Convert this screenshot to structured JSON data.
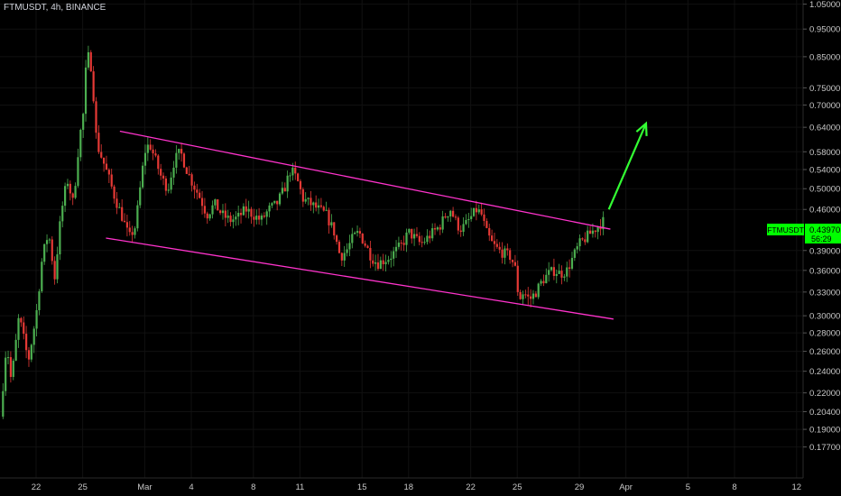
{
  "header": {
    "title": "FTMUSDT, 4h, BINANCE"
  },
  "price_tag": {
    "symbol": "FTMUSDT",
    "price": "0.43970",
    "countdown": "56:29",
    "color": "#00ff00"
  },
  "colors": {
    "background": "#000000",
    "up": "#4caf50",
    "down": "#e53935",
    "channel": "#ff33cc",
    "arrow": "#33ff33"
  },
  "chart_data": {
    "type": "candlestick",
    "scale": "log",
    "ylim": [
      0.165,
      1.06
    ],
    "y_ticks": [
      {
        "v": 1.05,
        "label": "1.05000"
      },
      {
        "v": 0.95,
        "label": "0.95000"
      },
      {
        "v": 0.85,
        "label": "0.85000"
      },
      {
        "v": 0.75,
        "label": "0.75000"
      },
      {
        "v": 0.7,
        "label": "0.70000"
      },
      {
        "v": 0.64,
        "label": "0.64000"
      },
      {
        "v": 0.58,
        "label": "0.58000"
      },
      {
        "v": 0.54,
        "label": "0.54000"
      },
      {
        "v": 0.5,
        "label": "0.50000"
      },
      {
        "v": 0.46,
        "label": "0.46000"
      },
      {
        "v": 0.39,
        "label": "0.39000"
      },
      {
        "v": 0.36,
        "label": "0.36000"
      },
      {
        "v": 0.33,
        "label": "0.33000"
      },
      {
        "v": 0.3,
        "label": "0.30000"
      },
      {
        "v": 0.28,
        "label": "0.28000"
      },
      {
        "v": 0.26,
        "label": "0.26000"
      },
      {
        "v": 0.24,
        "label": "0.24000"
      },
      {
        "v": 0.22,
        "label": "0.22000"
      },
      {
        "v": 0.204,
        "label": "0.20400"
      },
      {
        "v": 0.19,
        "label": "0.19000"
      },
      {
        "v": 0.177,
        "label": "0.17700"
      }
    ],
    "x_ticks": [
      {
        "t": 0,
        "label": "22"
      },
      {
        "t": 3,
        "label": "25"
      },
      {
        "t": 7,
        "label": "Mar"
      },
      {
        "t": 10,
        "label": "4"
      },
      {
        "t": 14,
        "label": "8"
      },
      {
        "t": 17,
        "label": "11"
      },
      {
        "t": 21,
        "label": "15"
      },
      {
        "t": 24,
        "label": "18"
      },
      {
        "t": 28,
        "label": "22"
      },
      {
        "t": 31,
        "label": "25"
      },
      {
        "t": 35,
        "label": "29"
      },
      {
        "t": 38,
        "label": "Apr"
      },
      {
        "t": 42,
        "label": "5"
      },
      {
        "t": 45,
        "label": "8"
      },
      {
        "t": 49,
        "label": "12"
      }
    ],
    "path_points": [
      [
        -2.3,
        0.2
      ],
      [
        -1.9,
        0.27
      ],
      [
        -1.6,
        0.23
      ],
      [
        -1.1,
        0.3
      ],
      [
        -0.5,
        0.25
      ],
      [
        0.0,
        0.3
      ],
      [
        0.4,
        0.38
      ],
      [
        0.8,
        0.42
      ],
      [
        1.2,
        0.35
      ],
      [
        1.6,
        0.45
      ],
      [
        2.0,
        0.52
      ],
      [
        2.4,
        0.47
      ],
      [
        2.8,
        0.62
      ],
      [
        3.0,
        0.65
      ],
      [
        3.2,
        0.8
      ],
      [
        3.4,
        0.86
      ],
      [
        3.6,
        0.8
      ],
      [
        3.9,
        0.6
      ],
      [
        4.3,
        0.56
      ],
      [
        4.7,
        0.52
      ],
      [
        5.1,
        0.48
      ],
      [
        5.5,
        0.45
      ],
      [
        6.0,
        0.41
      ],
      [
        6.4,
        0.43
      ],
      [
        6.7,
        0.5
      ],
      [
        7.0,
        0.58
      ],
      [
        7.3,
        0.6
      ],
      [
        7.7,
        0.56
      ],
      [
        8.1,
        0.52
      ],
      [
        8.5,
        0.5
      ],
      [
        8.9,
        0.56
      ],
      [
        9.3,
        0.58
      ],
      [
        9.7,
        0.54
      ],
      [
        10.1,
        0.51
      ],
      [
        10.6,
        0.48
      ],
      [
        11.0,
        0.45
      ],
      [
        11.5,
        0.47
      ],
      [
        12.0,
        0.45
      ],
      [
        12.5,
        0.44
      ],
      [
        13.0,
        0.445
      ],
      [
        13.5,
        0.46
      ],
      [
        14.0,
        0.45
      ],
      [
        14.5,
        0.44
      ],
      [
        15.0,
        0.46
      ],
      [
        15.5,
        0.47
      ],
      [
        16.0,
        0.5
      ],
      [
        16.4,
        0.54
      ],
      [
        16.8,
        0.52
      ],
      [
        17.2,
        0.48
      ],
      [
        17.7,
        0.47
      ],
      [
        18.2,
        0.46
      ],
      [
        18.7,
        0.45
      ],
      [
        19.2,
        0.42
      ],
      [
        19.6,
        0.38
      ],
      [
        20.0,
        0.39
      ],
      [
        20.4,
        0.41
      ],
      [
        20.8,
        0.42
      ],
      [
        21.2,
        0.4
      ],
      [
        21.6,
        0.38
      ],
      [
        22.0,
        0.37
      ],
      [
        22.4,
        0.375
      ],
      [
        22.8,
        0.38
      ],
      [
        23.2,
        0.39
      ],
      [
        23.6,
        0.4
      ],
      [
        24.0,
        0.42
      ],
      [
        24.4,
        0.41
      ],
      [
        24.8,
        0.4
      ],
      [
        25.2,
        0.41
      ],
      [
        25.6,
        0.42
      ],
      [
        26.0,
        0.43
      ],
      [
        26.4,
        0.45
      ],
      [
        26.7,
        0.46
      ],
      [
        27.0,
        0.44
      ],
      [
        27.3,
        0.425
      ],
      [
        27.6,
        0.43
      ],
      [
        28.0,
        0.445
      ],
      [
        28.4,
        0.46
      ],
      [
        28.7,
        0.45
      ],
      [
        29.0,
        0.42
      ],
      [
        29.4,
        0.4
      ],
      [
        29.8,
        0.39
      ],
      [
        30.2,
        0.385
      ],
      [
        30.6,
        0.38
      ],
      [
        30.9,
        0.36
      ],
      [
        31.1,
        0.32
      ],
      [
        31.4,
        0.33
      ],
      [
        31.8,
        0.32
      ],
      [
        32.2,
        0.33
      ],
      [
        32.6,
        0.345
      ],
      [
        33.0,
        0.355
      ],
      [
        33.4,
        0.36
      ],
      [
        33.8,
        0.355
      ],
      [
        34.2,
        0.36
      ],
      [
        34.6,
        0.38
      ],
      [
        35.0,
        0.4
      ],
      [
        35.4,
        0.41
      ],
      [
        35.8,
        0.42
      ],
      [
        36.2,
        0.43
      ],
      [
        36.6,
        0.44
      ]
    ],
    "channel_upper": [
      [
        5.4,
        0.63
      ],
      [
        37.0,
        0.425
      ]
    ],
    "channel_lower": [
      [
        4.5,
        0.41
      ],
      [
        37.2,
        0.296
      ]
    ],
    "arrow": [
      [
        36.9,
        0.46
      ],
      [
        39.3,
        0.65
      ]
    ]
  }
}
